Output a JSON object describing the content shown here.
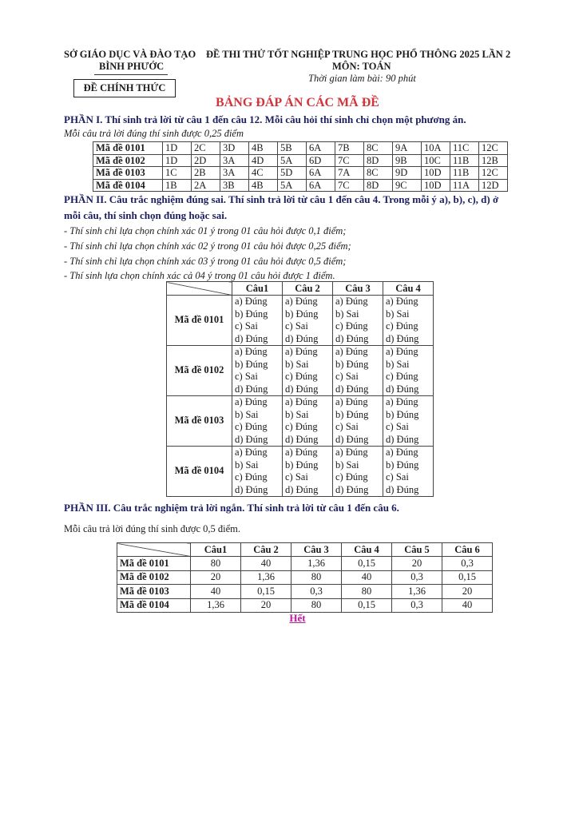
{
  "header": {
    "department": "SỞ GIÁO DỤC VÀ ĐÀO TẠO",
    "province": "BÌNH PHƯỚC",
    "official_label": "ĐỀ CHÍNH THỨC",
    "exam_title": "ĐỀ THI THỬ TỐT NGHIỆP TRUNG HỌC PHỔ THÔNG 2025 LẦN 2",
    "subject": "MÔN: TOÁN",
    "time": "Thời gian làm bài: 90 phút"
  },
  "title": "BẢNG ĐÁP ÁN CÁC MÃ ĐỀ",
  "part1": {
    "heading": "PHẦN I. Thí sinh trả lời từ câu 1 đến câu 12. Mỗi câu hỏi thí sinh chỉ chọn một phương án.",
    "note": "Mỗi câu trả lời đúng thí sinh được 0,25 điểm",
    "rows": [
      {
        "code": "Mã đề 0101",
        "answers": [
          "1D",
          "2C",
          "3D",
          "4B",
          "5B",
          "6A",
          "7B",
          "8C",
          "9A",
          "10A",
          "11C",
          "12C"
        ]
      },
      {
        "code": "Mã đề 0102",
        "answers": [
          "1D",
          "2D",
          "3A",
          "4D",
          "5A",
          "6D",
          "7C",
          "8D",
          "9B",
          "10C",
          "11B",
          "12B"
        ]
      },
      {
        "code": "Mã đề 0103",
        "answers": [
          "1C",
          "2B",
          "3A",
          "4C",
          "5D",
          "6A",
          "7A",
          "8C",
          "9D",
          "10D",
          "11B",
          "12C"
        ]
      },
      {
        "code": "Mã đề 0104",
        "answers": [
          "1B",
          "2A",
          "3B",
          "4B",
          "5A",
          "6A",
          "7C",
          "8D",
          "9C",
          "10D",
          "11A",
          "12D"
        ]
      }
    ]
  },
  "part2": {
    "heading_line1": "PHẦN II. Câu trắc nghiệm đúng sai. Thí sinh trả lời từ câu 1 đến câu 4. Trong mỗi ý a), b), c), d) ở",
    "heading_line2": "mỗi câu, thí sinh chọn đúng hoặc sai.",
    "rules": [
      "- Thí sinh chỉ lựa chọn chính xác 01 ý trong 01 câu hỏi được 0,1 điểm;",
      "- Thí sinh chỉ lựa chọn chính xác 02 ý trong 01 câu hỏi được 0,25 điểm;",
      "- Thí sinh chỉ lựa chọn chính xác 03 ý trong 01 câu hỏi được 0,5 điểm;",
      "- Thí sinh lựa chọn chính xác cả 04 ý trong 01 câu hỏi được 1 điểm."
    ],
    "columns": [
      "Câu1",
      "Câu 2",
      "Câu 3",
      "Câu 4"
    ],
    "rows": [
      {
        "code": "Mã đề 0101",
        "answers": [
          [
            "a) Đúng",
            "b) Đúng",
            "c) Sai",
            "d) Đúng"
          ],
          [
            "a) Đúng",
            "b) Đúng",
            "c) Sai",
            "d) Đúng"
          ],
          [
            "a) Đúng",
            "b) Sai",
            "c) Đúng",
            "d) Đúng"
          ],
          [
            "a) Đúng",
            "b) Sai",
            "c) Đúng",
            "d) Đúng"
          ]
        ]
      },
      {
        "code": "Mã đề 0102",
        "answers": [
          [
            "a) Đúng",
            "b) Đúng",
            "c) Sai",
            "d) Đúng"
          ],
          [
            "a) Đúng",
            "b) Sai",
            "c) Đúng",
            "d) Đúng"
          ],
          [
            "a) Đúng",
            "b) Đúng",
            "c) Sai",
            "d) Đúng"
          ],
          [
            "a) Đúng",
            "b) Sai",
            "c) Đúng",
            "d) Đúng"
          ]
        ]
      },
      {
        "code": "Mã đề 0103",
        "answers": [
          [
            "a) Đúng",
            "b) Sai",
            "c) Đúng",
            "d) Đúng"
          ],
          [
            "a) Đúng",
            "b) Sai",
            "c) Đúng",
            "d) Đúng"
          ],
          [
            "a) Đúng",
            "b) Đúng",
            "c) Sai",
            "d) Đúng"
          ],
          [
            "a) Đúng",
            "b) Đúng",
            "c) Sai",
            "d) Đúng"
          ]
        ]
      },
      {
        "code": "Mã đề 0104",
        "answers": [
          [
            "a) Đúng",
            "b) Sai",
            "c) Đúng",
            "d) Đúng"
          ],
          [
            "a) Đúng",
            "b) Đúng",
            "c) Sai",
            "d) Đúng"
          ],
          [
            "a) Đúng",
            "b) Sai",
            "c) Đúng",
            "d) Đúng"
          ],
          [
            "a) Đúng",
            "b) Đúng",
            "c) Sai",
            "d) Đúng"
          ]
        ]
      }
    ]
  },
  "part3": {
    "heading": "PHẦN III. Câu trắc nghiệm trả lời ngắn. Thí sinh trả lời từ câu 1 đến câu 6.",
    "note": "Mỗi câu trả lời đúng thí sinh được 0,5 điểm.",
    "columns": [
      "Câu1",
      "Câu 2",
      "Câu 3",
      "Câu 4",
      "Câu 5",
      "Câu 6"
    ],
    "rows": [
      {
        "code": "Mã đề 0101",
        "answers": [
          "80",
          "40",
          "1,36",
          "0,15",
          "20",
          "0,3"
        ]
      },
      {
        "code": "Mã đề 0102",
        "answers": [
          "20",
          "1,36",
          "80",
          "40",
          "0,3",
          "0,15"
        ]
      },
      {
        "code": "Mã đề 0103",
        "answers": [
          "40",
          "0,15",
          "0,3",
          "80",
          "1,36",
          "20"
        ]
      },
      {
        "code": "Mã đề 0104",
        "answers": [
          "1,36",
          "20",
          "80",
          "0,15",
          "0,3",
          "40"
        ]
      }
    ]
  },
  "end_label": "Hết",
  "colors": {
    "title": "#d1343a",
    "heading": "#1c1f5e",
    "end": "#c2189a"
  }
}
